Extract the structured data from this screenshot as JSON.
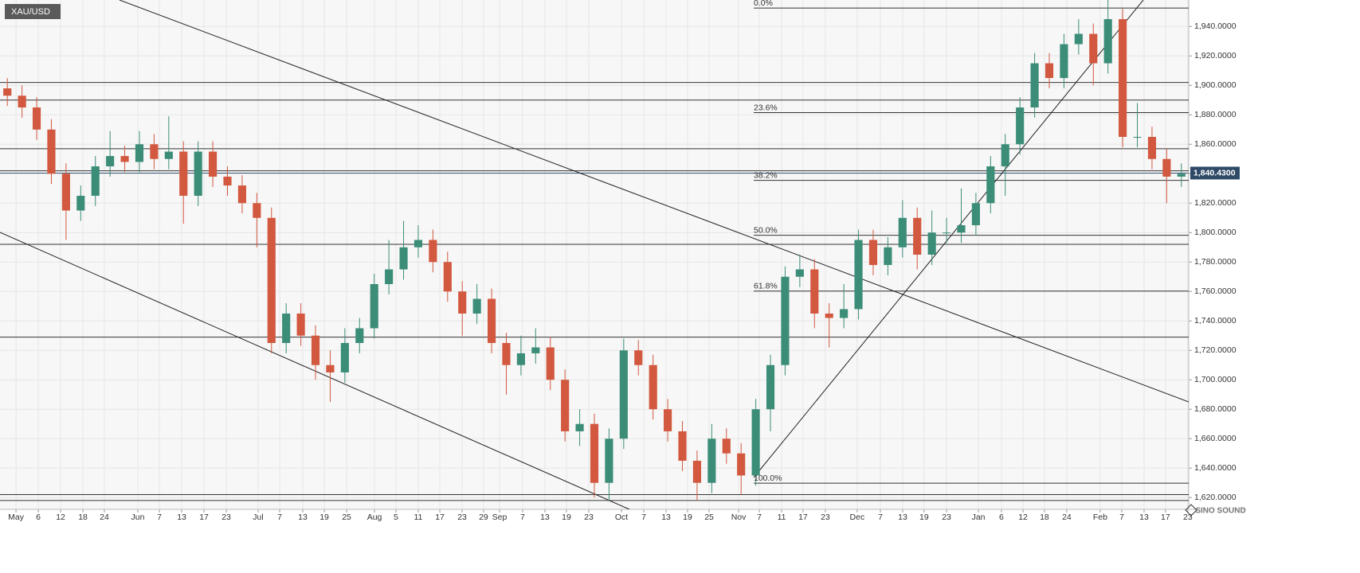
{
  "chart_data": {
    "type": "candlestick",
    "title": "XAU/USD",
    "x": [
      0.5,
      1.5,
      2.5,
      3.5,
      4.5,
      5.5,
      6.5,
      7.5,
      8.5,
      9.5,
      10.5,
      11.5,
      12.5,
      13.5,
      14.5,
      15.5,
      16.5,
      17.5,
      18.5,
      19.5,
      20.5,
      21.5,
      22.5,
      23.5,
      24.5,
      25.5,
      26.5,
      27.5,
      28.5,
      29.5,
      30.5,
      31.5,
      32.5,
      33.5,
      34.5,
      35.5,
      36.5,
      37.5,
      38.5,
      39.5,
      40.5,
      41.5,
      42.5,
      43.5,
      44.5,
      45.5,
      46.5,
      47.5,
      48.5,
      49.5,
      50.5,
      51.5,
      52.5,
      53.5,
      54.5,
      55.5,
      56.5,
      57.5,
      58.5,
      59.5,
      60.5,
      61.5,
      62.5,
      63.5,
      64.5,
      65.5,
      66.5,
      67.5,
      68.5,
      69.5,
      70.5,
      71.5,
      72.5,
      73.5,
      74.5,
      75.5,
      76.5,
      77.5,
      78.5,
      79.5,
      80.5
    ],
    "open": [
      1898,
      1893,
      1885,
      1870,
      1840,
      1815,
      1825,
      1845,
      1852,
      1848,
      1860,
      1850,
      1855,
      1825,
      1855,
      1838,
      1832,
      1820,
      1810,
      1725,
      1745,
      1730,
      1710,
      1705,
      1725,
      1735,
      1765,
      1775,
      1790,
      1795,
      1780,
      1760,
      1745,
      1755,
      1725,
      1710,
      1718,
      1722,
      1700,
      1665,
      1670,
      1630,
      1660,
      1720,
      1710,
      1680,
      1665,
      1645,
      1630,
      1660,
      1650,
      1635,
      1680,
      1710,
      1770,
      1775,
      1745,
      1742,
      1748,
      1795,
      1778,
      1790,
      1810,
      1785,
      1800,
      1800,
      1805,
      1820,
      1845,
      1860,
      1885,
      1915,
      1905,
      1928,
      1935,
      1915,
      1945,
      1865,
      1865,
      1850,
      1838
    ],
    "high": [
      1905,
      1900,
      1892,
      1877,
      1847,
      1832,
      1852,
      1869,
      1859,
      1869,
      1867,
      1879,
      1862,
      1862,
      1862,
      1845,
      1839,
      1827,
      1817,
      1752,
      1752,
      1737,
      1720,
      1735,
      1742,
      1772,
      1795,
      1808,
      1805,
      1802,
      1787,
      1767,
      1765,
      1762,
      1732,
      1730,
      1735,
      1729,
      1707,
      1680,
      1677,
      1667,
      1728,
      1727,
      1717,
      1687,
      1672,
      1652,
      1670,
      1667,
      1657,
      1687,
      1717,
      1777,
      1785,
      1782,
      1752,
      1765,
      1802,
      1802,
      1797,
      1822,
      1817,
      1815,
      1810,
      1830,
      1827,
      1852,
      1867,
      1892,
      1922,
      1922,
      1935,
      1945,
      1942,
      1958,
      1952,
      1888,
      1872,
      1857,
      1847
    ],
    "low": [
      1886,
      1878,
      1863,
      1833,
      1795,
      1808,
      1818,
      1838,
      1841,
      1841,
      1843,
      1843,
      1806,
      1818,
      1831,
      1825,
      1813,
      1790,
      1718,
      1718,
      1723,
      1700,
      1685,
      1698,
      1718,
      1728,
      1758,
      1768,
      1783,
      1773,
      1753,
      1730,
      1738,
      1718,
      1690,
      1703,
      1711,
      1693,
      1658,
      1655,
      1620,
      1618,
      1653,
      1703,
      1673,
      1658,
      1638,
      1618,
      1623,
      1643,
      1622,
      1628,
      1665,
      1703,
      1763,
      1735,
      1722,
      1735,
      1741,
      1771,
      1771,
      1783,
      1775,
      1778,
      1793,
      1793,
      1798,
      1813,
      1825,
      1853,
      1878,
      1898,
      1898,
      1921,
      1900,
      1908,
      1858,
      1858,
      1843,
      1820,
      1831
    ],
    "close": [
      1893,
      1885,
      1870,
      1840,
      1815,
      1825,
      1845,
      1852,
      1848,
      1860,
      1850,
      1855,
      1825,
      1855,
      1838,
      1832,
      1820,
      1810,
      1725,
      1745,
      1730,
      1710,
      1705,
      1725,
      1735,
      1765,
      1775,
      1790,
      1795,
      1780,
      1760,
      1745,
      1755,
      1725,
      1710,
      1718,
      1722,
      1700,
      1665,
      1670,
      1630,
      1660,
      1720,
      1710,
      1680,
      1665,
      1645,
      1630,
      1660,
      1650,
      1635,
      1680,
      1710,
      1770,
      1775,
      1745,
      1742,
      1748,
      1795,
      1778,
      1790,
      1810,
      1785,
      1800,
      1800,
      1805,
      1820,
      1845,
      1860,
      1885,
      1915,
      1905,
      1928,
      1935,
      1915,
      1945,
      1865,
      1865,
      1850,
      1838,
      1840
    ],
    "up_color": "#3b8d78",
    "down_color": "#d2583f",
    "xlim": [
      0,
      81
    ],
    "ylim": [
      1612,
      1958
    ],
    "yticks": [
      {
        "value": 1620,
        "label": "1,620.0000"
      },
      {
        "value": 1640,
        "label": "1,640.0000"
      },
      {
        "value": 1660,
        "label": "1,660.0000"
      },
      {
        "value": 1680,
        "label": "1,680.0000"
      },
      {
        "value": 1700,
        "label": "1,700.0000"
      },
      {
        "value": 1720,
        "label": "1,720.0000"
      },
      {
        "value": 1740,
        "label": "1,740.0000"
      },
      {
        "value": 1760,
        "label": "1,760.0000"
      },
      {
        "value": 1780,
        "label": "1,780.0000"
      },
      {
        "value": 1800,
        "label": "1,800.0000"
      },
      {
        "value": 1820,
        "label": "1,820.0000"
      },
      {
        "value": 1840,
        "label": "1,840.0000"
      },
      {
        "value": 1860,
        "label": "1,860.0000"
      },
      {
        "value": 1880,
        "label": "1,880.0000"
      },
      {
        "value": 1900,
        "label": "1,900.0000"
      },
      {
        "value": 1920,
        "label": "1,920.0000"
      },
      {
        "value": 1940,
        "label": "1,940.0000"
      }
    ],
    "xticks": [
      {
        "value": 1.09,
        "label": "May"
      },
      {
        "value": 2.61,
        "label": "6"
      },
      {
        "value": 4.13,
        "label": "12"
      },
      {
        "value": 5.65,
        "label": "18"
      },
      {
        "value": 7.11,
        "label": "24"
      },
      {
        "value": 9.39,
        "label": "Jun"
      },
      {
        "value": 10.86,
        "label": "7"
      },
      {
        "value": 12.38,
        "label": "13"
      },
      {
        "value": 13.9,
        "label": "17"
      },
      {
        "value": 15.42,
        "label": "23"
      },
      {
        "value": 17.59,
        "label": "Jul"
      },
      {
        "value": 19.06,
        "label": "7"
      },
      {
        "value": 20.63,
        "label": "13"
      },
      {
        "value": 22.1,
        "label": "19"
      },
      {
        "value": 23.62,
        "label": "25"
      },
      {
        "value": 25.52,
        "label": "Aug"
      },
      {
        "value": 26.98,
        "label": "5"
      },
      {
        "value": 28.5,
        "label": "11"
      },
      {
        "value": 29.97,
        "label": "17"
      },
      {
        "value": 31.49,
        "label": "23"
      },
      {
        "value": 32.95,
        "label": "29"
      },
      {
        "value": 34.04,
        "label": "Sep"
      },
      {
        "value": 35.61,
        "label": "7"
      },
      {
        "value": 37.13,
        "label": "13"
      },
      {
        "value": 38.6,
        "label": "19"
      },
      {
        "value": 40.12,
        "label": "23"
      },
      {
        "value": 42.35,
        "label": "Oct"
      },
      {
        "value": 43.87,
        "label": "7"
      },
      {
        "value": 45.39,
        "label": "13"
      },
      {
        "value": 46.85,
        "label": "19"
      },
      {
        "value": 48.32,
        "label": "25"
      },
      {
        "value": 50.33,
        "label": "Nov"
      },
      {
        "value": 51.74,
        "label": "7"
      },
      {
        "value": 53.26,
        "label": "11"
      },
      {
        "value": 54.72,
        "label": "17"
      },
      {
        "value": 56.24,
        "label": "23"
      },
      {
        "value": 58.41,
        "label": "Dec"
      },
      {
        "value": 59.99,
        "label": "7"
      },
      {
        "value": 61.51,
        "label": "13"
      },
      {
        "value": 62.97,
        "label": "19"
      },
      {
        "value": 64.5,
        "label": "23"
      },
      {
        "value": 66.67,
        "label": "Jan"
      },
      {
        "value": 68.24,
        "label": "6"
      },
      {
        "value": 69.71,
        "label": "12"
      },
      {
        "value": 71.17,
        "label": "18"
      },
      {
        "value": 72.69,
        "label": "24"
      },
      {
        "value": 74.97,
        "label": "Feb"
      },
      {
        "value": 76.44,
        "label": "7"
      },
      {
        "value": 77.96,
        "label": "13"
      },
      {
        "value": 79.42,
        "label": "17"
      },
      {
        "value": 80.94,
        "label": "23"
      }
    ],
    "grid": true,
    "levels": [
      1902,
      1890,
      1857,
      1842,
      1792,
      1729,
      1622,
      1618
    ],
    "fib_levels": [
      {
        "label": "0.0%",
        "value": 1952.5
      },
      {
        "label": "23.6%",
        "value": 1881.5
      },
      {
        "label": "38.2%",
        "value": 1835.5
      },
      {
        "label": "50.0%",
        "value": 1798.2
      },
      {
        "label": "61.8%",
        "value": 1760.3
      },
      {
        "label": "100.0%",
        "value": 1629.8
      }
    ],
    "last_price": {
      "value": 1840.43,
      "label": "1,840.4300"
    },
    "watermark": "SINO SOUND"
  }
}
